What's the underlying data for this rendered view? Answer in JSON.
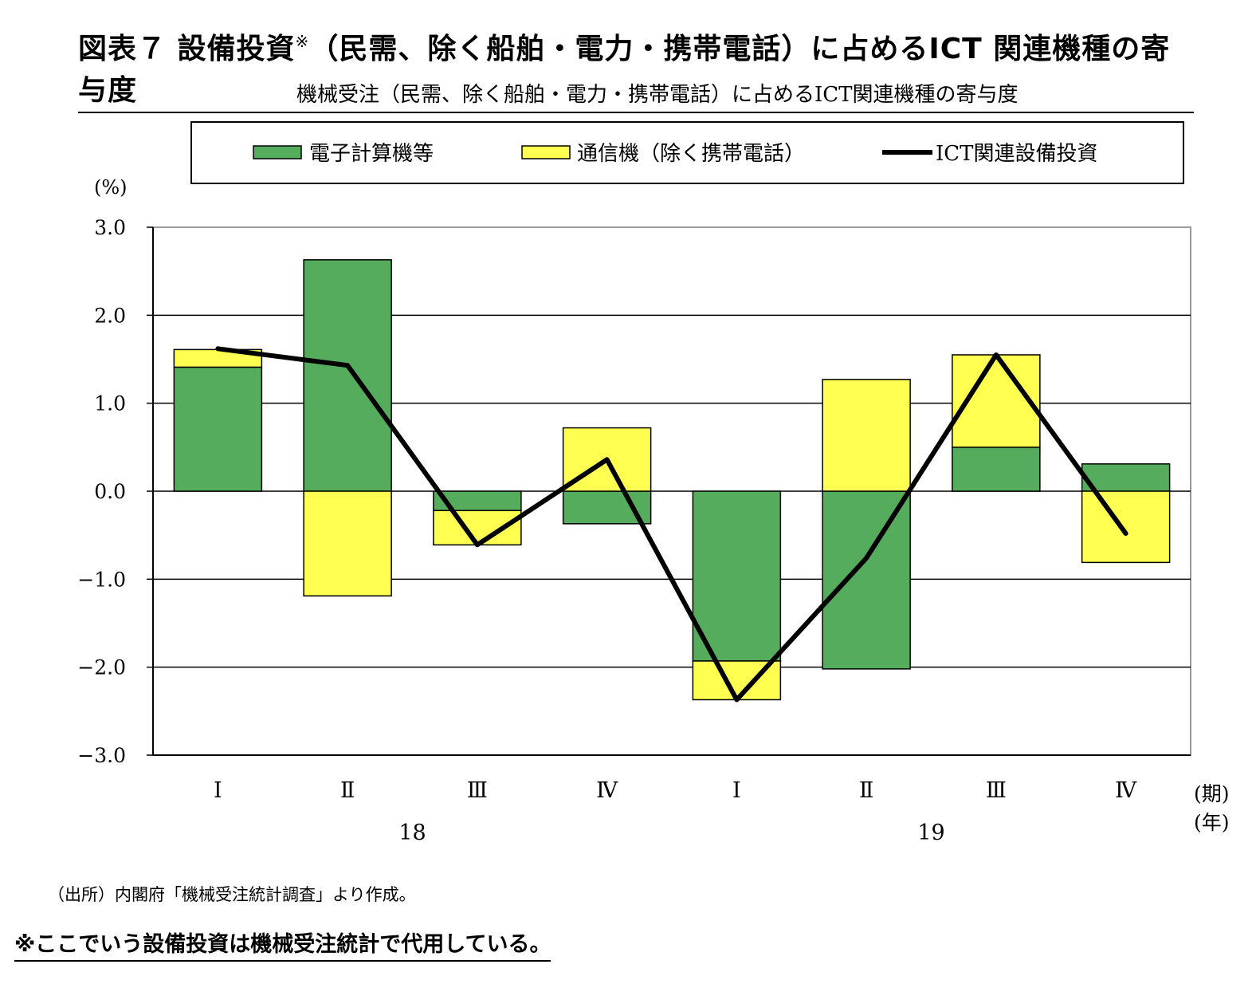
{
  "title": {
    "text": "図表７ 設備投資",
    "mark": "※",
    "rest": "（民需、除く船舶・電力・携帯電話）に占めるICT 関連機種の寄与度"
  },
  "subtitle": "機械受注（民需、除く船舶・電力・携帯電話）に占めるICT関連機種の寄与度",
  "colors": {
    "computers": "#54ac5c",
    "telecom": "#ffff52",
    "ict_line": "#000000"
  },
  "chart_data": {
    "type": "bar",
    "stacked": true,
    "unit_label": "(%)",
    "categories": [
      "Ⅰ",
      "Ⅱ",
      "Ⅲ",
      "Ⅳ",
      "Ⅰ",
      "Ⅱ",
      "Ⅲ",
      "Ⅳ"
    ],
    "year_labels": [
      {
        "label": "18",
        "after_index": 1
      },
      {
        "label": "19",
        "after_index": 5
      }
    ],
    "x_suffix": "(期)",
    "year_suffix": "(年)",
    "ylim": [
      -3.0,
      3.0
    ],
    "yticks": [
      "3.0",
      "2.0",
      "1.0",
      "0.0",
      "−1.0",
      "−2.0",
      "−3.0"
    ],
    "ytick_values": [
      3,
      2,
      1,
      0,
      -1,
      -2,
      -3
    ],
    "grid": true,
    "legend_position": "top",
    "series": [
      {
        "name": "電子計算機等",
        "kind": "bar",
        "values": [
          1.41,
          2.63,
          -0.22,
          -0.37,
          -1.93,
          -2.02,
          0.5,
          0.31
        ]
      },
      {
        "name": "通信機（除く携帯電話）",
        "kind": "bar",
        "values": [
          0.2,
          -1.19,
          -0.39,
          0.72,
          -0.44,
          1.27,
          1.05,
          -0.81
        ]
      },
      {
        "name": "ICT関連設備投資",
        "kind": "line",
        "values": [
          1.62,
          1.43,
          -0.61,
          0.36,
          -2.37,
          -0.76,
          1.55,
          -0.48
        ]
      }
    ]
  },
  "note": "（出所）内閣府「機械受注統計調査」より作成。",
  "footnote": "※ここでいう設備投資は機械受注統計で代用している。"
}
